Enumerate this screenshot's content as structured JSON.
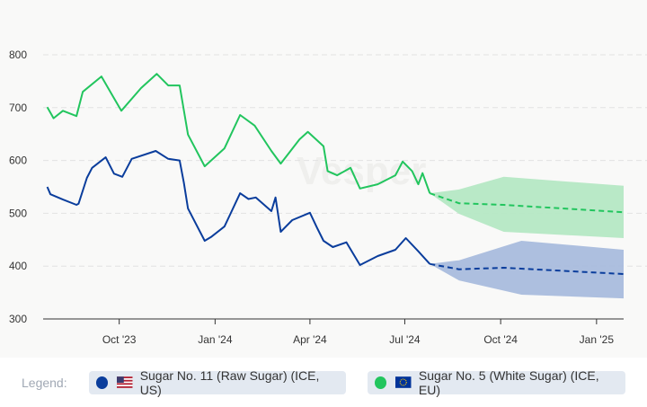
{
  "watermark": "Vesper",
  "legend": {
    "label": "Legend:",
    "items": [
      {
        "name": "Sugar No. 11 (Raw Sugar) (ICE, US)",
        "color": "#0a3d9c",
        "flag": "us-flag-icon"
      },
      {
        "name": "Sugar No. 5 (White Sugar) (ICE, EU)",
        "color": "#22c55e",
        "flag": "eu-flag-icon"
      }
    ]
  },
  "chart_data": {
    "type": "line",
    "xlim": [
      "2023-07-20",
      "2025-01-27"
    ],
    "ylim": [
      300,
      800
    ],
    "yticks": [
      300,
      400,
      500,
      600,
      700,
      800
    ],
    "xticks": [
      {
        "date": "2023-10-01",
        "label": "Oct '23"
      },
      {
        "date": "2024-01-01",
        "label": "Jan '24"
      },
      {
        "date": "2024-04-01",
        "label": "Apr '24"
      },
      {
        "date": "2024-07-01",
        "label": "Jul '24"
      },
      {
        "date": "2024-10-01",
        "label": "Oct '24"
      },
      {
        "date": "2025-01-01",
        "label": "Jan '25"
      }
    ],
    "grid": true,
    "legend_placement": "bottom",
    "series": [
      {
        "name": "Sugar No. 11 (Raw Sugar) (ICE, US)",
        "color": "#0a3d9c",
        "band_color": "#a9bcdd",
        "values": [
          [
            "2023-07-24",
            550
          ],
          [
            "2023-07-27",
            536
          ],
          [
            "2023-08-08",
            526
          ],
          [
            "2023-08-21",
            516
          ],
          [
            "2023-08-23",
            518
          ],
          [
            "2023-08-31",
            567
          ],
          [
            "2023-09-05",
            586
          ],
          [
            "2023-09-18",
            606
          ],
          [
            "2023-09-26",
            575
          ],
          [
            "2023-10-04",
            569
          ],
          [
            "2023-10-13",
            603
          ],
          [
            "2023-11-05",
            618
          ],
          [
            "2023-11-17",
            603
          ],
          [
            "2023-11-28",
            600
          ],
          [
            "2023-12-02",
            558
          ],
          [
            "2023-12-06",
            509
          ],
          [
            "2023-12-22",
            448
          ],
          [
            "2023-12-28",
            455
          ],
          [
            "2024-01-10",
            475
          ],
          [
            "2024-01-25",
            538
          ],
          [
            "2024-02-02",
            527
          ],
          [
            "2024-02-09",
            530
          ],
          [
            "2024-02-24",
            504
          ],
          [
            "2024-02-28",
            530
          ],
          [
            "2024-03-04",
            465
          ],
          [
            "2024-03-15",
            487
          ],
          [
            "2024-04-01",
            501
          ],
          [
            "2024-04-08",
            472
          ],
          [
            "2024-04-14",
            448
          ],
          [
            "2024-04-23",
            436
          ],
          [
            "2024-05-06",
            445
          ],
          [
            "2024-05-19",
            402
          ],
          [
            "2024-06-05",
            419
          ],
          [
            "2024-06-22",
            431
          ],
          [
            "2024-07-02",
            453
          ],
          [
            "2024-07-14",
            428
          ],
          [
            "2024-07-25",
            404
          ]
        ],
        "forecast": [
          [
            "2024-07-25",
            404
          ],
          [
            "2024-08-22",
            394
          ],
          [
            "2024-10-04",
            397
          ],
          [
            "2025-01-27",
            385
          ]
        ],
        "forecast_upper": [
          [
            "2024-07-25",
            404
          ],
          [
            "2024-08-22",
            411
          ],
          [
            "2024-10-21",
            448
          ],
          [
            "2025-01-27",
            431
          ]
        ],
        "forecast_lower": [
          [
            "2024-07-25",
            404
          ],
          [
            "2024-08-22",
            373
          ],
          [
            "2024-10-21",
            346
          ],
          [
            "2025-01-27",
            339
          ]
        ]
      },
      {
        "name": "Sugar No. 5 (White Sugar) (ICE, EU)",
        "color": "#22c55e",
        "band_color": "#b5e8c4",
        "values": [
          [
            "2023-07-24",
            701
          ],
          [
            "2023-07-30",
            680
          ],
          [
            "2023-08-08",
            694
          ],
          [
            "2023-08-21",
            684
          ],
          [
            "2023-08-27",
            730
          ],
          [
            "2023-09-14",
            759
          ],
          [
            "2023-10-03",
            694
          ],
          [
            "2023-10-22",
            737
          ],
          [
            "2023-11-06",
            764
          ],
          [
            "2023-11-17",
            742
          ],
          [
            "2023-11-28",
            742
          ],
          [
            "2023-12-06",
            649
          ],
          [
            "2023-12-22",
            589
          ],
          [
            "2024-01-10",
            623
          ],
          [
            "2024-01-25",
            686
          ],
          [
            "2024-02-08",
            666
          ],
          [
            "2024-02-24",
            618
          ],
          [
            "2024-03-04",
            594
          ],
          [
            "2024-03-22",
            640
          ],
          [
            "2024-03-30",
            654
          ],
          [
            "2024-04-14",
            627
          ],
          [
            "2024-04-18",
            580
          ],
          [
            "2024-04-27",
            572
          ],
          [
            "2024-05-10",
            586
          ],
          [
            "2024-05-19",
            547
          ],
          [
            "2024-06-05",
            555
          ],
          [
            "2024-06-22",
            572
          ],
          [
            "2024-06-29",
            598
          ],
          [
            "2024-07-08",
            580
          ],
          [
            "2024-07-14",
            555
          ],
          [
            "2024-07-18",
            576
          ],
          [
            "2024-07-25",
            538
          ]
        ],
        "forecast": [
          [
            "2024-07-25",
            538
          ],
          [
            "2024-08-22",
            519
          ],
          [
            "2024-10-04",
            516
          ],
          [
            "2025-01-27",
            502
          ]
        ],
        "forecast_upper": [
          [
            "2024-07-25",
            538
          ],
          [
            "2024-08-22",
            545
          ],
          [
            "2024-10-04",
            569
          ],
          [
            "2025-01-27",
            552
          ]
        ],
        "forecast_lower": [
          [
            "2024-07-25",
            538
          ],
          [
            "2024-08-22",
            499
          ],
          [
            "2024-10-04",
            465
          ],
          [
            "2025-01-27",
            453
          ]
        ]
      }
    ]
  }
}
